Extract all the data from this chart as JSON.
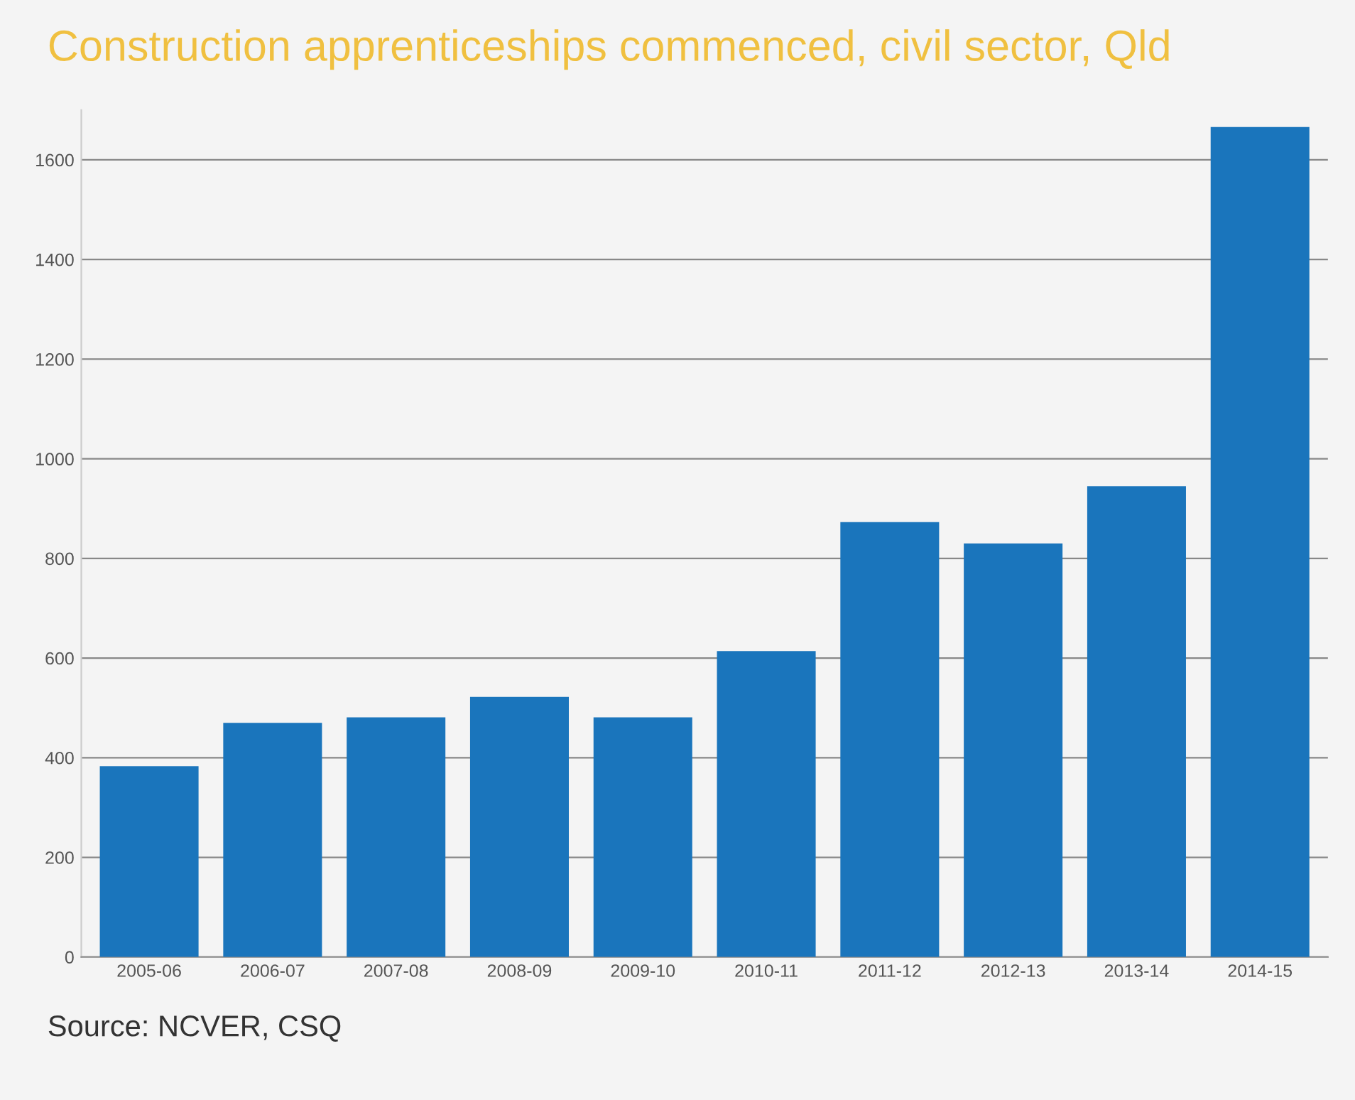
{
  "chart_data": {
    "type": "bar",
    "title": "Construction apprenticeships commenced, civil sector, Qld",
    "categories": [
      "2005-06",
      "2006-07",
      "2007-08",
      "2008-09",
      "2009-10",
      "2010-11",
      "2011-12",
      "2012-13",
      "2013-14",
      "2014-15"
    ],
    "values": [
      383,
      470,
      481,
      522,
      481,
      614,
      873,
      830,
      945,
      1666
    ],
    "color": "#1a75bc",
    "ylim": [
      0,
      1700
    ],
    "yticks": [
      0,
      200,
      400,
      600,
      800,
      1000,
      1200,
      1400,
      1600
    ],
    "grid": "y",
    "annotations": [
      "Source: NCVER, CSQ"
    ]
  }
}
